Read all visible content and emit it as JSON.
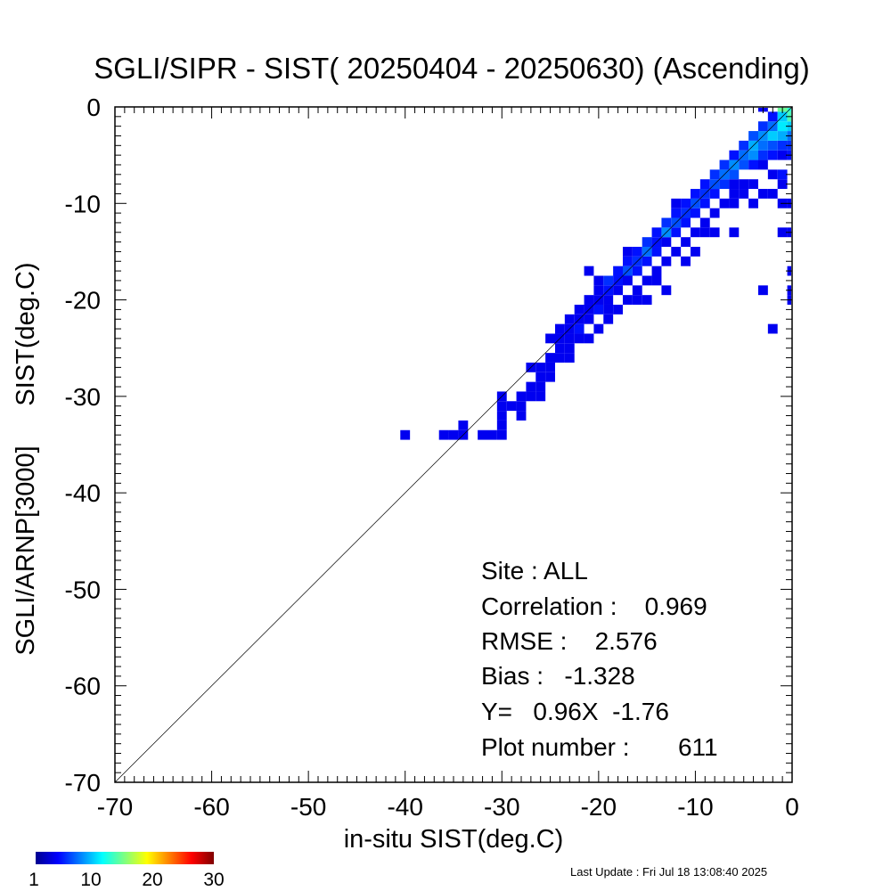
{
  "chart_data": {
    "type": "heatmap",
    "title": "SGLI/SIPR - SIST( 20250404 - 20250630) (Ascending)",
    "xlabel": "in-situ SIST(deg.C)",
    "ylabel_top": "SIST(deg.C)",
    "ylabel_bottom": "SGLI/ARNP[3000]",
    "xlim": [
      -70,
      0
    ],
    "ylim": [
      -70,
      0
    ],
    "x_ticks": [
      "-70",
      "-60",
      "-50",
      "-40",
      "-30",
      "-20",
      "-10",
      "0"
    ],
    "y_ticks": [
      "-70",
      "-60",
      "-50",
      "-40",
      "-30",
      "-20",
      "-10",
      "0"
    ],
    "reference_line": "1:1",
    "bin_size": 1,
    "stats": {
      "site": "Site : ALL",
      "correlation": "Correlation :    0.969",
      "rmse": "RMSE :    2.576",
      "bias": "Bias :   -1.328",
      "regression": "Y=   0.96X  -1.76",
      "plot_number": "Plot number :       611"
    },
    "colorbar": {
      "min": 1,
      "max": 30,
      "ticks": [
        "1",
        "10",
        "20",
        "30"
      ]
    },
    "cells": [
      [
        -40,
        -34,
        1
      ],
      [
        -36,
        -34,
        1
      ],
      [
        -35,
        -34,
        1
      ],
      [
        -34,
        -34,
        1
      ],
      [
        -34,
        -33,
        1
      ],
      [
        -32,
        -34,
        1
      ],
      [
        -31,
        -34,
        1
      ],
      [
        -30,
        -34,
        1
      ],
      [
        -30,
        -33,
        1
      ],
      [
        -30,
        -32,
        1
      ],
      [
        -30,
        -31,
        1
      ],
      [
        -30,
        -30,
        1
      ],
      [
        -29,
        -31,
        1
      ],
      [
        -28,
        -32,
        1
      ],
      [
        -28,
        -31,
        1
      ],
      [
        -28,
        -30,
        1
      ],
      [
        -27,
        -30,
        1
      ],
      [
        -27,
        -29,
        1
      ],
      [
        -26,
        -30,
        1
      ],
      [
        -26,
        -29,
        1
      ],
      [
        -26,
        -28,
        1
      ],
      [
        -27,
        -27,
        1
      ],
      [
        -26,
        -27,
        1
      ],
      [
        -25,
        -28,
        1
      ],
      [
        -25,
        -27,
        1
      ],
      [
        -25,
        -26,
        1
      ],
      [
        -24,
        -26,
        1
      ],
      [
        -24,
        -25,
        1
      ],
      [
        -23,
        -26,
        1
      ],
      [
        -23,
        -25,
        1
      ],
      [
        -25,
        -24,
        1
      ],
      [
        -24,
        -24,
        1
      ],
      [
        -23,
        -24,
        1
      ],
      [
        -22,
        -24,
        1
      ],
      [
        -24,
        -23,
        1
      ],
      [
        -23,
        -23,
        1
      ],
      [
        -22,
        -23,
        2
      ],
      [
        -21,
        -24,
        1
      ],
      [
        -23,
        -22,
        1
      ],
      [
        -22,
        -22,
        1
      ],
      [
        -21,
        -22,
        1
      ],
      [
        -20,
        -23,
        1
      ],
      [
        -22,
        -21,
        1
      ],
      [
        -21,
        -21,
        1
      ],
      [
        -20,
        -21,
        2
      ],
      [
        -19,
        -22,
        1
      ],
      [
        -21,
        -20,
        1
      ],
      [
        -20,
        -20,
        1
      ],
      [
        -19,
        -20,
        1
      ],
      [
        -18,
        -21,
        1
      ],
      [
        -19,
        -21,
        1
      ],
      [
        -20,
        -19,
        1
      ],
      [
        -19,
        -19,
        2
      ],
      [
        -18,
        -19,
        1
      ],
      [
        -17,
        -20,
        1
      ],
      [
        -16,
        -20,
        1
      ],
      [
        -20,
        -18,
        1
      ],
      [
        -19,
        -18,
        3
      ],
      [
        -18,
        -18,
        2
      ],
      [
        -17,
        -18,
        1
      ],
      [
        -16,
        -19,
        1
      ],
      [
        -15,
        -20,
        1
      ],
      [
        -18,
        -17,
        2
      ],
      [
        -17,
        -17,
        4
      ],
      [
        -16,
        -17,
        2
      ],
      [
        -15,
        -18,
        1
      ],
      [
        -14,
        -18,
        1
      ],
      [
        -13,
        -19,
        1
      ],
      [
        -21,
        -17,
        1
      ],
      [
        -17,
        -16,
        2
      ],
      [
        -16,
        -16,
        3
      ],
      [
        -15,
        -16,
        2
      ],
      [
        -14,
        -17,
        1
      ],
      [
        -17,
        -15,
        1
      ],
      [
        -16,
        -15,
        2
      ],
      [
        -15,
        -15,
        5
      ],
      [
        -14,
        -15,
        2
      ],
      [
        -13,
        -16,
        1
      ],
      [
        -15,
        -14,
        3
      ],
      [
        -14,
        -14,
        2
      ],
      [
        -13,
        -14,
        1
      ],
      [
        -12,
        -15,
        1
      ],
      [
        -11,
        -16,
        1
      ],
      [
        -14,
        -13,
        2
      ],
      [
        -13,
        -13,
        6
      ],
      [
        -12,
        -13,
        2
      ],
      [
        -11,
        -14,
        1
      ],
      [
        -10,
        -15,
        1
      ],
      [
        -13,
        -12,
        3
      ],
      [
        -12,
        -12,
        4
      ],
      [
        -11,
        -12,
        2
      ],
      [
        -10,
        -13,
        1
      ],
      [
        -12,
        -11,
        2
      ],
      [
        -11,
        -11,
        3
      ],
      [
        -10,
        -11,
        2
      ],
      [
        -9,
        -12,
        1
      ],
      [
        -12,
        -10,
        1
      ],
      [
        -11,
        -10,
        2
      ],
      [
        -10,
        -10,
        4
      ],
      [
        -9,
        -10,
        2
      ],
      [
        -8,
        -11,
        1
      ],
      [
        -10,
        -9,
        2
      ],
      [
        -9,
        -9,
        3
      ],
      [
        -8,
        -9,
        2
      ],
      [
        -7,
        -10,
        1
      ],
      [
        -5,
        -9,
        1
      ],
      [
        -3,
        -9,
        1
      ],
      [
        -9,
        -8,
        2
      ],
      [
        -8,
        -8,
        4
      ],
      [
        -7,
        -8,
        3
      ],
      [
        -6,
        -8,
        1
      ],
      [
        -1,
        -8,
        1
      ],
      [
        -8,
        -7,
        3
      ],
      [
        -7,
        -7,
        5
      ],
      [
        -6,
        -7,
        4
      ],
      [
        -5,
        -8,
        1
      ],
      [
        -2,
        -7,
        1
      ],
      [
        -1,
        -7,
        2
      ],
      [
        -7,
        -6,
        3
      ],
      [
        -6,
        -6,
        6
      ],
      [
        -5,
        -6,
        4
      ],
      [
        -4,
        -6,
        2
      ],
      [
        -3,
        -6,
        1
      ],
      [
        -6,
        -5,
        2
      ],
      [
        -5,
        -5,
        5
      ],
      [
        -4,
        -5,
        6
      ],
      [
        -3,
        -5,
        3
      ],
      [
        -2,
        -5,
        2
      ],
      [
        -1,
        -5,
        1
      ],
      [
        0,
        -5,
        2
      ],
      [
        -5,
        -4,
        3
      ],
      [
        -4,
        -4,
        7
      ],
      [
        -3,
        -4,
        5
      ],
      [
        -2,
        -4,
        4
      ],
      [
        -1,
        -4,
        3
      ],
      [
        0,
        -4,
        3
      ],
      [
        -4,
        -3,
        4
      ],
      [
        -3,
        -3,
        6
      ],
      [
        -2,
        -3,
        8
      ],
      [
        -1,
        -3,
        7
      ],
      [
        0,
        -3,
        5
      ],
      [
        -3,
        -2,
        3
      ],
      [
        -2,
        -2,
        5
      ],
      [
        -1,
        -2,
        9
      ],
      [
        0,
        -2,
        8
      ],
      [
        -2,
        -1,
        2
      ],
      [
        -1,
        -1,
        8
      ],
      [
        0,
        -1,
        12
      ],
      [
        -3,
        0,
        1
      ],
      [
        -1,
        0,
        13
      ],
      [
        0,
        0,
        11
      ],
      [
        -9,
        -13,
        1
      ],
      [
        -8,
        -13,
        1
      ],
      [
        -6,
        -13,
        1
      ],
      [
        -6,
        -9,
        1
      ],
      [
        -4,
        -10,
        1
      ],
      [
        -2,
        -9,
        1
      ],
      [
        -1,
        -10,
        1
      ],
      [
        0,
        -10,
        1
      ],
      [
        -1,
        -13,
        1
      ],
      [
        0,
        -13,
        1
      ],
      [
        0,
        -17,
        1
      ],
      [
        -3,
        -19,
        1
      ],
      [
        0,
        -19,
        1
      ],
      [
        0,
        -20,
        1
      ],
      [
        -2,
        -23,
        1
      ],
      [
        -4,
        -8,
        1
      ],
      [
        -6,
        -10,
        1
      ]
    ]
  },
  "footer": {
    "last_update": "Last Update : Fri Jul 18 13:08:40 2025"
  }
}
